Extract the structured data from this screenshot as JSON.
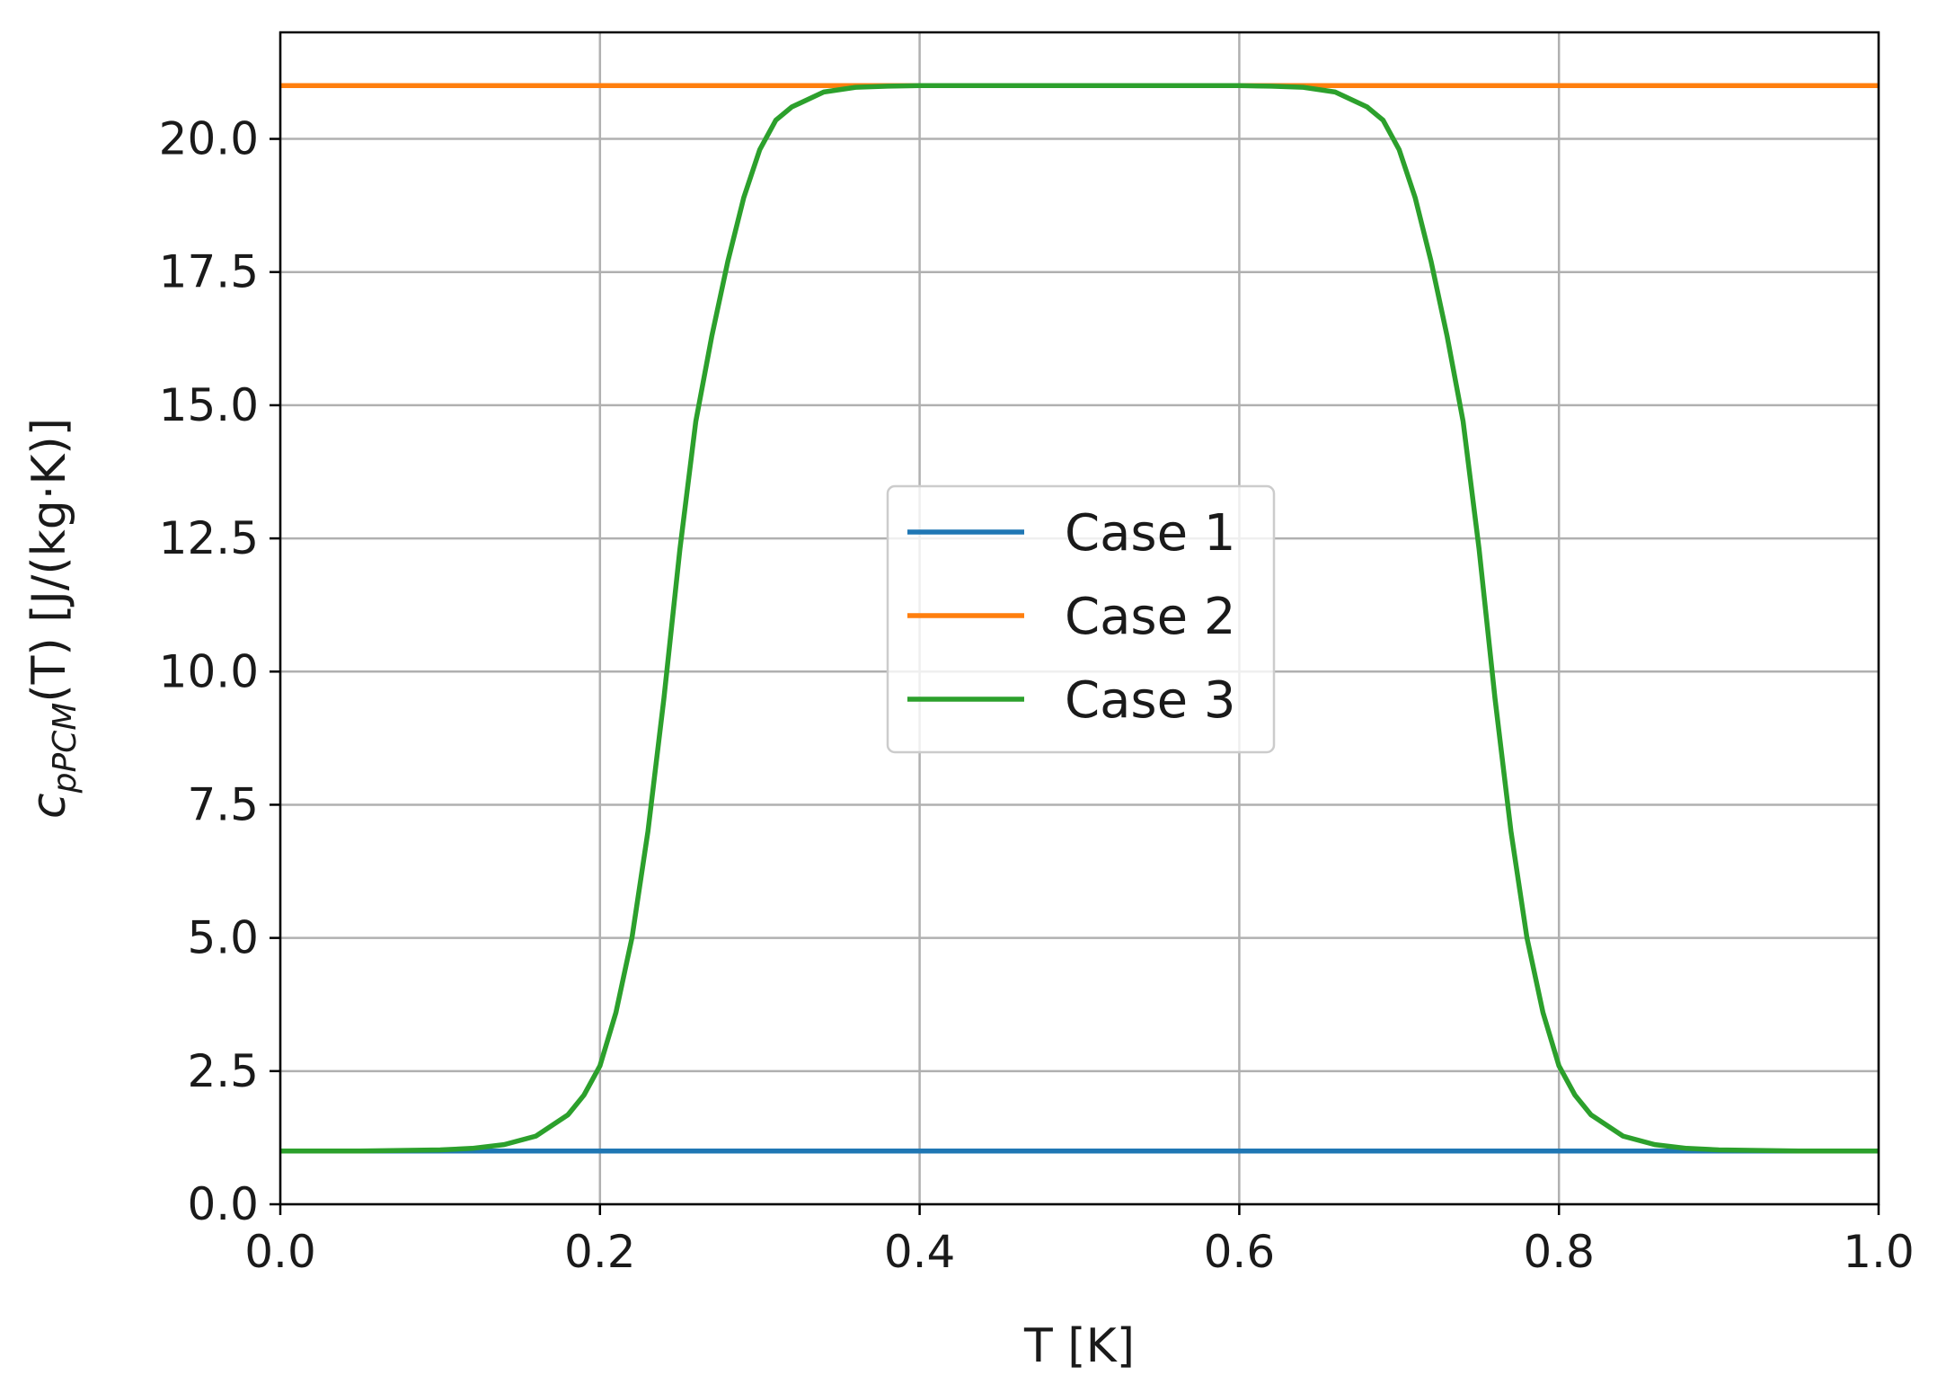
{
  "chart_data": {
    "type": "line",
    "xlabel": "T [K]",
    "ylabel": {
      "main": "c",
      "subscript": "pPCM",
      "rest": "(T) [J/(kg·K)]"
    },
    "xlim": [
      0.0,
      1.0
    ],
    "ylim": [
      0.0,
      22.0
    ],
    "x_ticks": [
      0.0,
      0.2,
      0.4,
      0.6,
      0.8,
      1.0
    ],
    "x_tick_labels": [
      "0.0",
      "0.2",
      "0.4",
      "0.6",
      "0.8",
      "1.0"
    ],
    "y_ticks": [
      0.0,
      2.5,
      5.0,
      7.5,
      10.0,
      12.5,
      15.0,
      17.5,
      20.0
    ],
    "y_tick_labels": [
      "0.0",
      "2.5",
      "5.0",
      "7.5",
      "10.0",
      "12.5",
      "15.0",
      "17.5",
      "20.0"
    ],
    "grid": true,
    "legend": {
      "position": "center",
      "entries": [
        "Case 1",
        "Case 2",
        "Case 3"
      ]
    },
    "series": [
      {
        "name": "Case 1",
        "color": "#1f77b4",
        "x": [
          0.0,
          1.0
        ],
        "values": [
          1.0,
          1.0
        ]
      },
      {
        "name": "Case 2",
        "color": "#ff7f0e",
        "x": [
          0.0,
          1.0
        ],
        "values": [
          21.0,
          21.0
        ]
      },
      {
        "name": "Case 3",
        "color": "#2ca02c",
        "x": [
          0.0,
          0.05,
          0.1,
          0.12,
          0.14,
          0.16,
          0.18,
          0.19,
          0.2,
          0.21,
          0.22,
          0.23,
          0.24,
          0.25,
          0.26,
          0.27,
          0.28,
          0.29,
          0.3,
          0.31,
          0.32,
          0.34,
          0.36,
          0.38,
          0.4,
          0.5,
          0.6,
          0.62,
          0.64,
          0.66,
          0.68,
          0.69,
          0.7,
          0.71,
          0.72,
          0.73,
          0.74,
          0.75,
          0.76,
          0.77,
          0.78,
          0.79,
          0.8,
          0.81,
          0.82,
          0.84,
          0.86,
          0.88,
          0.9,
          0.95,
          1.0
        ],
        "values": [
          1.0,
          1.0,
          1.02,
          1.05,
          1.12,
          1.28,
          1.68,
          2.05,
          2.6,
          3.6,
          5.0,
          7.0,
          9.5,
          12.3,
          14.7,
          16.3,
          17.7,
          18.9,
          19.8,
          20.35,
          20.6,
          20.88,
          20.97,
          20.99,
          21.0,
          21.0,
          21.0,
          20.99,
          20.97,
          20.88,
          20.6,
          20.35,
          19.8,
          18.9,
          17.7,
          16.3,
          14.7,
          12.3,
          9.5,
          7.0,
          5.0,
          3.6,
          2.6,
          2.05,
          1.68,
          1.28,
          1.12,
          1.05,
          1.02,
          1.0,
          1.0
        ]
      }
    ]
  }
}
